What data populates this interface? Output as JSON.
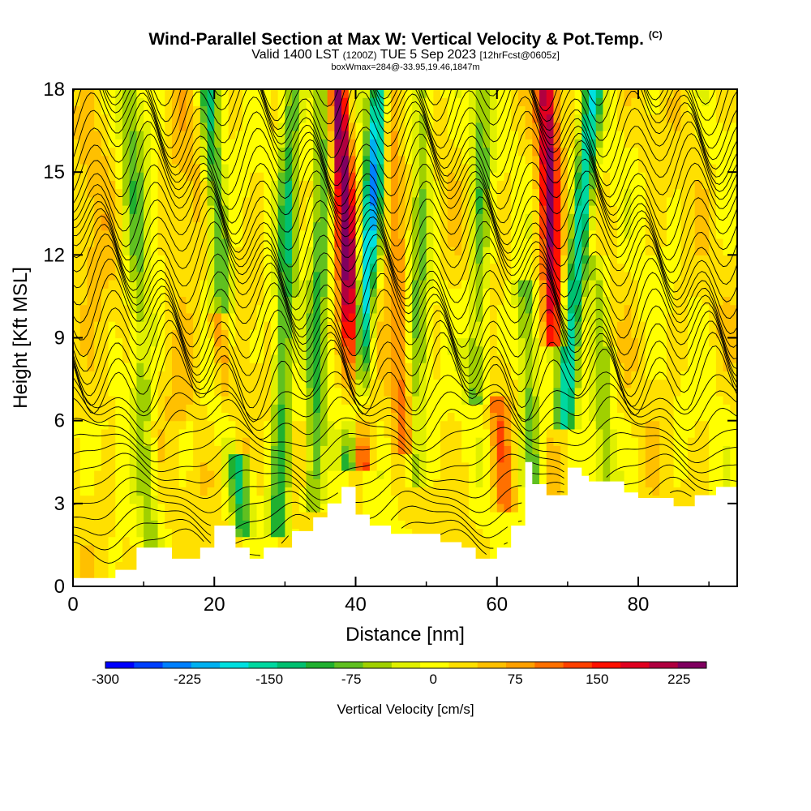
{
  "header": {
    "title": "Wind-Parallel Section at Max W: Vertical Velocity & Pot.Temp.",
    "copyright": "(C)",
    "valid_prefix": "Valid 1400 LST",
    "valid_utc": "(1200Z)",
    "valid_date": "TUE 5 Sep 2023",
    "forecast": "[12hrFcst@0605z]",
    "box_info": "boxWmax=284@-33.95,19.46,1847m"
  },
  "chart_data": {
    "type": "heatmap",
    "xlabel": "Distance [nm]",
    "ylabel": "Height [Kft MSL]",
    "xlim": [
      0,
      94
    ],
    "ylim": [
      0,
      18
    ],
    "x_ticks": [
      "0",
      "20",
      "40",
      "60",
      "80"
    ],
    "x_tick_values": [
      0,
      20,
      40,
      60,
      80
    ],
    "y_ticks": [
      "0",
      "3",
      "6",
      "9",
      "12",
      "15",
      "18"
    ],
    "y_tick_values": [
      0,
      3,
      6,
      9,
      12,
      15,
      18
    ],
    "colorbar": {
      "label": "Vertical Velocity [cm/s]",
      "range": [
        -300,
        250
      ],
      "tick_labels": [
        "-300",
        "-225",
        "-150",
        "-75",
        "0",
        "75",
        "150",
        "225"
      ],
      "tick_values": [
        -300,
        -225,
        -150,
        -75,
        0,
        75,
        150,
        225
      ],
      "colors": [
        "#0000ff",
        "#0040ff",
        "#0080ff",
        "#00b0f0",
        "#00e0e0",
        "#00d8a0",
        "#00c070",
        "#20b030",
        "#60c020",
        "#a0d000",
        "#e0f000",
        "#ffff00",
        "#ffe000",
        "#ffc000",
        "#ffa000",
        "#ff7000",
        "#ff4000",
        "#ff1000",
        "#e00020",
        "#b00040",
        "#800060"
      ]
    },
    "terrain": [
      [
        0,
        0.3
      ],
      [
        6,
        0.3
      ],
      [
        6,
        0.6
      ],
      [
        9,
        0.6
      ],
      [
        9,
        1.4
      ],
      [
        14,
        1.4
      ],
      [
        14,
        1.0
      ],
      [
        18,
        1.0
      ],
      [
        18,
        1.4
      ],
      [
        20,
        1.4
      ],
      [
        20,
        2.2
      ],
      [
        23,
        2.2
      ],
      [
        23,
        1.4
      ],
      [
        25,
        1.4
      ],
      [
        25,
        1.0
      ],
      [
        27,
        1.0
      ],
      [
        27,
        1.4
      ],
      [
        31,
        1.4
      ],
      [
        31,
        2.0
      ],
      [
        34,
        2.0
      ],
      [
        34,
        2.5
      ],
      [
        36,
        2.5
      ],
      [
        36,
        3.0
      ],
      [
        38,
        3.0
      ],
      [
        38,
        3.6
      ],
      [
        40,
        3.6
      ],
      [
        40,
        2.6
      ],
      [
        42,
        2.6
      ],
      [
        42,
        2.2
      ],
      [
        45,
        2.2
      ],
      [
        45,
        1.9
      ],
      [
        52,
        1.9
      ],
      [
        52,
        1.6
      ],
      [
        55,
        1.6
      ],
      [
        55,
        1.4
      ],
      [
        57,
        1.4
      ],
      [
        57,
        1.0
      ],
      [
        60,
        1.0
      ],
      [
        60,
        1.4
      ],
      [
        62,
        1.4
      ],
      [
        62,
        2.2
      ],
      [
        64,
        2.2
      ],
      [
        64,
        4.5
      ],
      [
        65,
        4.5
      ],
      [
        65,
        3.7
      ],
      [
        67,
        3.7
      ],
      [
        67,
        3.3
      ],
      [
        70,
        3.3
      ],
      [
        70,
        4.3
      ],
      [
        72,
        4.3
      ],
      [
        72,
        4.0
      ],
      [
        73,
        4.0
      ],
      [
        73,
        3.8
      ],
      [
        78,
        3.8
      ],
      [
        78,
        3.4
      ],
      [
        80,
        3.4
      ],
      [
        80,
        3.2
      ],
      [
        85,
        3.2
      ],
      [
        85,
        2.9
      ],
      [
        88,
        2.9
      ],
      [
        88,
        3.3
      ],
      [
        91,
        3.3
      ],
      [
        91,
        3.6
      ],
      [
        94,
        3.6
      ]
    ],
    "updrafts": [
      {
        "x_bottom": 40.5,
        "x_top": 37.5,
        "y_bottom": 4.5,
        "y_top": 18,
        "peak": 230
      },
      {
        "x_bottom": 23.5,
        "x_top": 20.5,
        "y_bottom": 5.0,
        "y_top": 10,
        "peak": 150
      },
      {
        "x_bottom": 68.0,
        "x_top": 67.0,
        "y_bottom": 9.0,
        "y_top": 18,
        "peak": 200
      },
      {
        "x_bottom": 61.0,
        "x_top": 60.0,
        "y_bottom": 3.0,
        "y_top": 7,
        "peak": 90
      },
      {
        "x_bottom": 47.0,
        "x_top": 44.5,
        "y_bottom": 5.0,
        "y_top": 18,
        "peak": 80
      }
    ],
    "downdrafts": [
      {
        "x_bottom": 39.5,
        "x_top": 43.5,
        "y_bottom": 4.5,
        "y_top": 18,
        "peak": -230
      },
      {
        "x_bottom": 69.5,
        "x_top": 73.5,
        "y_bottom": 6.0,
        "y_top": 18,
        "peak": -180
      },
      {
        "x_bottom": 24.0,
        "x_top": 19.0,
        "y_bottom": 2.0,
        "y_top": 18,
        "peak": -120
      },
      {
        "x_bottom": 29.0,
        "x_top": 31.0,
        "y_bottom": 2.0,
        "y_top": 18,
        "peak": -120
      },
      {
        "x_bottom": 34.0,
        "x_top": 35.5,
        "y_bottom": 3.0,
        "y_top": 18,
        "peak": -110
      },
      {
        "x_bottom": 48.5,
        "x_top": 49.5,
        "y_bottom": 4.0,
        "y_top": 18,
        "peak": -80
      },
      {
        "x_bottom": 57.0,
        "x_top": 58.0,
        "y_bottom": 7.0,
        "y_top": 18,
        "peak": -90
      },
      {
        "x_bottom": 65.0,
        "x_top": 64.0,
        "y_bottom": 4.0,
        "y_top": 11,
        "peak": -100
      },
      {
        "x_bottom": 11.0,
        "x_top": 8.0,
        "y_bottom": 1.0,
        "y_top": 18,
        "peak": -60
      },
      {
        "x_bottom": 75.5,
        "x_top": 74.0,
        "y_bottom": 4.0,
        "y_top": 12,
        "peak": -70
      }
    ]
  }
}
